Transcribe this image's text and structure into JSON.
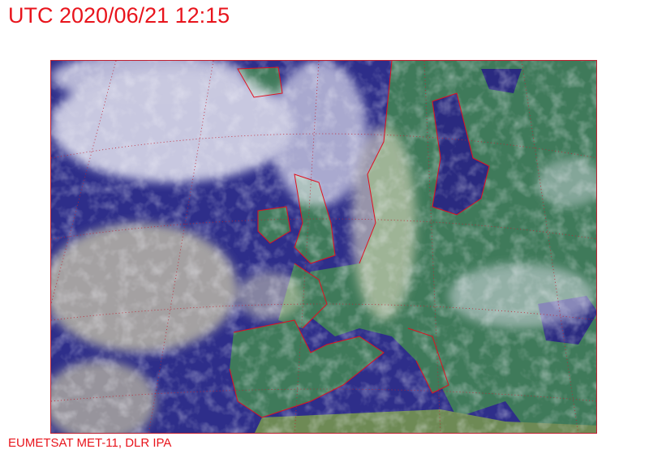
{
  "header": {
    "title": "UTC 2020/06/21 12:15"
  },
  "footer": {
    "credit": "EUMETSAT MET-11, DLR IPA"
  },
  "map": {
    "type": "satellite-composite",
    "region": "Europe",
    "colors": {
      "sea": "#2e2e8a",
      "land": "#3f7a5a",
      "cloud": "#e6e6f0",
      "coastline": "#e01020",
      "graticule": "#c02030"
    }
  }
}
